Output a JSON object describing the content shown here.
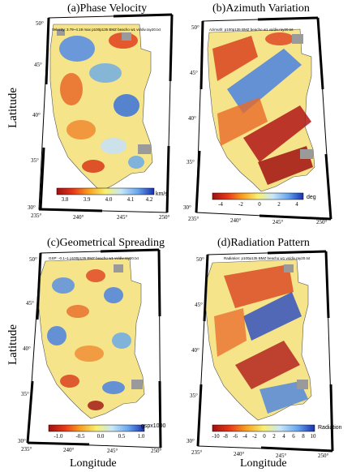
{
  "panels": [
    {
      "title": "(a)Phase Velocity",
      "subtitle": "Velocity: 3.79~4.19 max p100p135 BMZ beacho w1 vs/div.ray20.txt",
      "unit": "km/s",
      "cb_ticks": [
        "3.8",
        "3.9",
        "4.0",
        "4.1",
        "4.2"
      ],
      "cb_colors": [
        "#a01010",
        "#e83818",
        "#f8a020",
        "#f8f070",
        "#c8e8f8",
        "#68a8f0",
        "#1830b0"
      ]
    },
    {
      "title": "(b)Azimuth Variation",
      "subtitle": "Azimuth: p100p135 BMZ beacho w1 vs/div.ray20.txt",
      "unit": "deg",
      "cb_ticks": [
        "-4",
        "-2",
        "0",
        "2",
        "4"
      ],
      "cb_colors": [
        "#a01010",
        "#e83818",
        "#f8a020",
        "#f8f070",
        "#c8e8f8",
        "#68a8f0",
        "#1830b0"
      ]
    },
    {
      "title": "(c)Geometrical Spreading",
      "subtitle": "GSP: -0.1~1 p100p135 BMZ beacho w1 vs/div.ray20.txt",
      "unit": "gspx1000",
      "cb_ticks": [
        "-1.0",
        "-0.5",
        "0.0",
        "0.5",
        "1.0"
      ],
      "cb_colors": [
        "#a01010",
        "#e83818",
        "#f8a020",
        "#f8f070",
        "#c8e8f8",
        "#68a8f0",
        "#1830b0"
      ]
    },
    {
      "title": "(d)Radiation Pattern",
      "subtitle": "Radiation: p100p135 BMZ beacho w1 vs/div.ray20.txt",
      "unit": "Radiation",
      "cb_ticks": [
        "-10",
        "-8",
        "-6",
        "-4",
        "-2",
        "0",
        "2",
        "4",
        "6",
        "8",
        "10"
      ],
      "cb_colors": [
        "#a01010",
        "#e83818",
        "#f8a020",
        "#f8f070",
        "#c8e8f8",
        "#68a8f0",
        "#1830b0"
      ]
    }
  ],
  "lat_ticks_top": [
    "50°",
    "45°",
    "40°",
    "35°",
    "30°"
  ],
  "lat_ticks_bottom": [
    "50°",
    "45°",
    "40°",
    "35°",
    "30°"
  ],
  "lon_ticks_left": [
    "235°",
    "240°",
    "245°",
    "250°"
  ],
  "lon_ticks_right": [
    "235°",
    "240°",
    "245°",
    "250°"
  ],
  "axis": {
    "ylabel_top": "Latitude",
    "ylabel_bottom": "Latitude",
    "xlabel_left": "Longitude",
    "xlabel_right": "Longitude"
  }
}
